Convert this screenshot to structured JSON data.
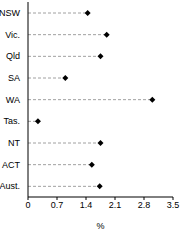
{
  "chart_data": {
    "type": "dot",
    "orientation": "horizontal",
    "categories": [
      "NSW",
      "Vic.",
      "Qld",
      "SA",
      "WA",
      "Tas.",
      "NT",
      "ACT",
      "Aust."
    ],
    "values": [
      1.44,
      1.9,
      1.75,
      0.9,
      3.0,
      0.24,
      1.75,
      1.54,
      1.73
    ],
    "xlim": [
      0,
      3.5
    ],
    "xticks": [
      0,
      0.7,
      1.4,
      2.1,
      2.8,
      3.5
    ],
    "x_label": "%",
    "color": "#000000",
    "marker": "diamond",
    "line_style": "dashed",
    "grid": false
  }
}
